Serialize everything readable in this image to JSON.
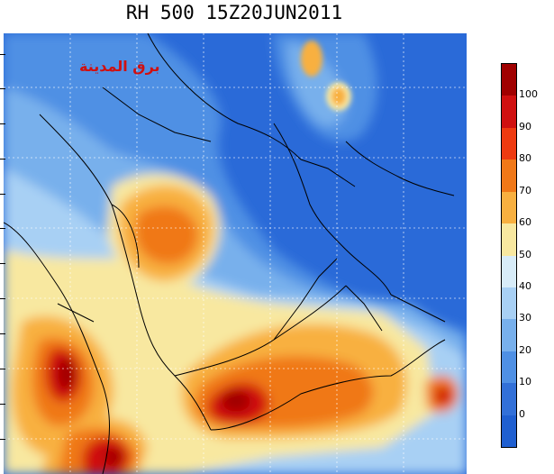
{
  "title": "RH 500 15Z20JUN2011",
  "watermark": "برق المدينة",
  "colorbar": {
    "labels": [
      "100",
      "90",
      "80",
      "70",
      "60",
      "50",
      "40",
      "30",
      "20",
      "10",
      "0"
    ],
    "colors": [
      "#a00000",
      "#d01010",
      "#ee3a10",
      "#f07818",
      "#f8b040",
      "#f8e8a0",
      "#d8ecf8",
      "#a8d0f4",
      "#78b0ec",
      "#4f90e4",
      "#3270d8",
      "#1f5fd0"
    ]
  }
}
